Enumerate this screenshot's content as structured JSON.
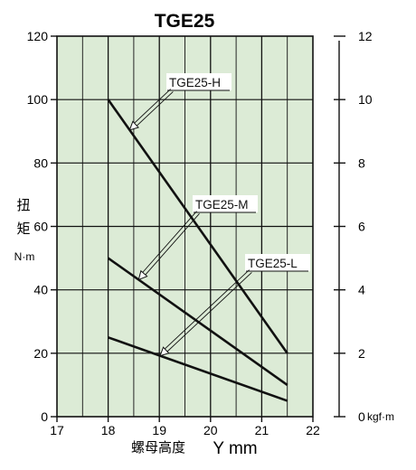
{
  "chart_data": {
    "type": "line",
    "title": "TGE25",
    "xlabel_cn": "螺母高度",
    "xlabel": "Y mm",
    "ylabel_char1": "扭",
    "ylabel_char2": "矩",
    "ylabel_unit": "N·m",
    "y2_unit": "kgf·m",
    "xlim": [
      17,
      22
    ],
    "ylim": [
      0,
      120
    ],
    "y2lim": [
      0,
      12
    ],
    "x_ticks": [
      "17",
      "18",
      "19",
      "20",
      "21",
      "22"
    ],
    "y_ticks": [
      "0",
      "20",
      "40",
      "60",
      "80",
      "100",
      "120"
    ],
    "y2_ticks": [
      "0",
      "2",
      "4",
      "6",
      "8",
      "10",
      "12"
    ],
    "grid": true,
    "background": "#dcebd6",
    "line_color": "#111111",
    "series": [
      {
        "name": "TGE25-H",
        "x": [
          18,
          21.5
        ],
        "y": [
          100,
          20
        ]
      },
      {
        "name": "TGE25-M",
        "x": [
          18,
          21.5
        ],
        "y": [
          50,
          10
        ]
      },
      {
        "name": "TGE25-L",
        "x": [
          18,
          21.5
        ],
        "y": [
          25,
          5
        ]
      }
    ]
  }
}
